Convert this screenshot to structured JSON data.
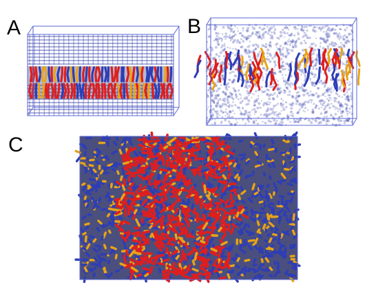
{
  "panels": {
    "a": {
      "label": "A"
    },
    "b": {
      "label": "B"
    },
    "c": {
      "label": "C"
    }
  },
  "colors": {
    "water": "#2f3aa8",
    "box_edge": "#5b67d6",
    "lipid_red": "#dd1f1f",
    "lipid_blue": "#2e3db5",
    "lipid_orange": "#e8a317",
    "background": "#ffffff"
  }
}
